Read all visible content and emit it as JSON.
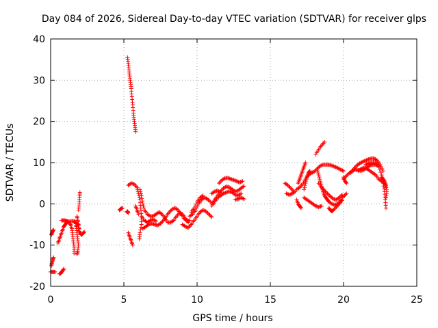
{
  "chart_data": {
    "type": "scatter",
    "title": "Day 084 of 2026, Sidereal Day-to-day VTEC variation (SDTVAR) for receiver glps",
    "xlabel": "GPS time / hours",
    "ylabel": "SDTVAR / TECUs",
    "xlim": [
      0,
      25
    ],
    "ylim": [
      -20,
      40
    ],
    "xticks": [
      0,
      5,
      10,
      15,
      20,
      25
    ],
    "yticks": [
      -20,
      -10,
      0,
      10,
      20,
      30,
      40
    ],
    "grid": true,
    "marker": "+",
    "color": "#ff0000",
    "segments": [
      [
        [
          0.05,
          -7.5
        ],
        [
          0.1,
          -7
        ],
        [
          0.15,
          -6.5
        ],
        [
          0.2,
          -6.3
        ]
      ],
      [
        [
          0.0,
          -16.5
        ],
        [
          0.15,
          -16.5
        ],
        [
          0.3,
          -16.5
        ]
      ],
      [
        [
          0.05,
          -15
        ],
        [
          0.1,
          -14.2
        ],
        [
          0.15,
          -13.5
        ],
        [
          0.2,
          -13
        ]
      ],
      [
        [
          0.6,
          -17
        ],
        [
          0.7,
          -16.8
        ],
        [
          0.8,
          -16.3
        ],
        [
          0.9,
          -15.8
        ]
      ],
      [
        [
          0.5,
          -9.5
        ],
        [
          0.6,
          -8.5
        ],
        [
          0.7,
          -7.5
        ],
        [
          0.8,
          -6.5
        ],
        [
          0.9,
          -5.5
        ],
        [
          1.0,
          -5
        ],
        [
          1.1,
          -4.5
        ],
        [
          1.2,
          -4.3
        ],
        [
          1.4,
          -4.2
        ],
        [
          1.6,
          -4.2
        ],
        [
          1.7,
          -4.5
        ],
        [
          1.75,
          -5.5
        ],
        [
          1.8,
          -7
        ],
        [
          1.85,
          -8.5
        ],
        [
          1.9,
          -10
        ],
        [
          1.85,
          -11.5
        ],
        [
          1.8,
          -12.2
        ]
      ],
      [
        [
          0.75,
          -4
        ],
        [
          0.9,
          -4
        ],
        [
          1.05,
          -4.1
        ],
        [
          1.2,
          -4.3
        ],
        [
          1.35,
          -5
        ],
        [
          1.45,
          -6
        ],
        [
          1.5,
          -7.5
        ],
        [
          1.55,
          -9
        ],
        [
          1.6,
          -10.5
        ],
        [
          1.6,
          -12
        ]
      ],
      [
        [
          1.9,
          -1.5
        ],
        [
          1.95,
          0
        ],
        [
          1.98,
          1.5
        ],
        [
          2.0,
          2.8
        ]
      ],
      [
        [
          1.9,
          -6
        ],
        [
          2.0,
          -7
        ],
        [
          2.1,
          -7.5
        ],
        [
          2.2,
          -7.2
        ],
        [
          2.3,
          -6.8
        ]
      ],
      [
        [
          1.8,
          -3
        ],
        [
          1.85,
          -4
        ],
        [
          1.9,
          -5
        ],
        [
          1.95,
          -6
        ]
      ],
      [
        [
          4.7,
          -1.5
        ],
        [
          4.8,
          -1.2
        ],
        [
          4.9,
          -1.0
        ]
      ],
      [
        [
          5.25,
          35.5
        ],
        [
          5.3,
          34
        ],
        [
          5.35,
          32.5
        ],
        [
          5.4,
          31
        ],
        [
          5.45,
          29.5
        ],
        [
          5.5,
          28
        ],
        [
          5.55,
          26
        ],
        [
          5.6,
          24
        ],
        [
          5.65,
          22
        ],
        [
          5.7,
          20.5
        ],
        [
          5.75,
          19
        ],
        [
          5.8,
          17.5
        ]
      ],
      [
        [
          5.2,
          -2
        ],
        [
          5.25,
          -1.8
        ],
        [
          5.3,
          -2.2
        ]
      ],
      [
        [
          5.3,
          -7
        ],
        [
          5.4,
          -8
        ],
        [
          5.5,
          -9
        ],
        [
          5.6,
          -10
        ]
      ],
      [
        [
          5.3,
          4.5
        ],
        [
          5.5,
          5
        ],
        [
          5.7,
          4.8
        ],
        [
          5.9,
          4
        ],
        [
          6.0,
          2.5
        ],
        [
          6.1,
          1
        ],
        [
          6.15,
          -1
        ],
        [
          6.2,
          -3
        ],
        [
          6.2,
          -5
        ],
        [
          6.1,
          -7
        ],
        [
          6.05,
          -8.5
        ]
      ],
      [
        [
          5.8,
          -0.5
        ],
        [
          5.9,
          -1.5
        ],
        [
          6.0,
          -2.5
        ]
      ],
      [
        [
          6.1,
          3.5
        ],
        [
          6.2,
          2
        ],
        [
          6.3,
          0
        ],
        [
          6.4,
          -1.5
        ],
        [
          6.6,
          -2.5
        ],
        [
          6.8,
          -3
        ],
        [
          7.0,
          -3
        ],
        [
          7.2,
          -2.5
        ],
        [
          7.4,
          -2
        ],
        [
          7.6,
          -2.5
        ],
        [
          7.8,
          -3.5
        ],
        [
          8.0,
          -4.5
        ],
        [
          8.2,
          -4.5
        ],
        [
          8.4,
          -4
        ],
        [
          8.6,
          -3
        ],
        [
          8.8,
          -2.2
        ],
        [
          9.0,
          -2.5
        ],
        [
          9.2,
          -3.5
        ],
        [
          9.4,
          -4.5
        ]
      ],
      [
        [
          6.3,
          -6
        ],
        [
          6.5,
          -5.5
        ],
        [
          6.7,
          -5
        ],
        [
          6.9,
          -4.8
        ],
        [
          7.1,
          -5
        ],
        [
          7.3,
          -5.2
        ],
        [
          7.5,
          -4.8
        ],
        [
          7.7,
          -4
        ],
        [
          7.9,
          -3
        ],
        [
          8.1,
          -2
        ],
        [
          8.3,
          -1.3
        ],
        [
          8.5,
          -1
        ],
        [
          8.7,
          -1.5
        ],
        [
          8.9,
          -2.5
        ],
        [
          9.1,
          -3.5
        ],
        [
          9.3,
          -4.2
        ],
        [
          9.5,
          -4
        ]
      ],
      [
        [
          6.2,
          -3
        ],
        [
          6.4,
          -4
        ],
        [
          6.6,
          -4.5
        ],
        [
          6.8,
          -4
        ],
        [
          7.0,
          -3.8
        ],
        [
          7.2,
          -4.2
        ]
      ],
      [
        [
          9.0,
          -5
        ],
        [
          9.2,
          -5.5
        ],
        [
          9.4,
          -5.8
        ],
        [
          9.6,
          -5
        ],
        [
          9.8,
          -4
        ],
        [
          10.0,
          -3
        ],
        [
          10.2,
          -2
        ],
        [
          10.4,
          -1.5
        ],
        [
          10.6,
          -1.8
        ],
        [
          10.8,
          -2.5
        ],
        [
          11.0,
          -3.2
        ]
      ],
      [
        [
          9.5,
          -3
        ],
        [
          9.7,
          -2.5
        ],
        [
          9.9,
          -1.5
        ],
        [
          10.1,
          0
        ],
        [
          10.3,
          1
        ],
        [
          10.5,
          1.5
        ],
        [
          10.7,
          1.2
        ],
        [
          10.9,
          0.5
        ]
      ],
      [
        [
          9.6,
          -2
        ],
        [
          9.8,
          -1
        ],
        [
          10.0,
          0.5
        ],
        [
          10.2,
          1.5
        ],
        [
          10.4,
          2
        ]
      ],
      [
        [
          11.0,
          0
        ],
        [
          11.2,
          1
        ],
        [
          11.4,
          2
        ],
        [
          11.6,
          3
        ],
        [
          11.8,
          3.8
        ],
        [
          12.0,
          4.2
        ],
        [
          12.2,
          4
        ],
        [
          12.4,
          3.5
        ],
        [
          12.6,
          3
        ],
        [
          12.8,
          3.2
        ],
        [
          13.0,
          3.8
        ],
        [
          13.2,
          4.3
        ]
      ],
      [
        [
          11.0,
          -0.5
        ],
        [
          11.2,
          0.5
        ],
        [
          11.4,
          1.5
        ],
        [
          11.6,
          2
        ],
        [
          11.8,
          2.5
        ],
        [
          12.0,
          2.8
        ],
        [
          12.2,
          3
        ],
        [
          12.4,
          2.8
        ],
        [
          12.6,
          2.2
        ],
        [
          12.8,
          2
        ],
        [
          13.0,
          2.5
        ]
      ],
      [
        [
          11.5,
          5
        ],
        [
          11.7,
          5.8
        ],
        [
          11.9,
          6.2
        ],
        [
          12.1,
          6.3
        ],
        [
          12.3,
          6
        ],
        [
          12.5,
          5.8
        ],
        [
          12.7,
          5.5
        ],
        [
          12.9,
          5.2
        ],
        [
          13.1,
          5.5
        ]
      ],
      [
        [
          11.0,
          2.5
        ],
        [
          11.2,
          3
        ],
        [
          11.4,
          3.2
        ],
        [
          11.6,
          2.8
        ]
      ],
      [
        [
          12.6,
          1
        ],
        [
          12.8,
          1.2
        ],
        [
          13.0,
          1.5
        ],
        [
          13.2,
          1.2
        ]
      ],
      [
        [
          16.0,
          5
        ],
        [
          16.2,
          4.5
        ],
        [
          16.4,
          3.8
        ],
        [
          16.6,
          3
        ]
      ],
      [
        [
          16.1,
          2.5
        ],
        [
          16.3,
          2.2
        ],
        [
          16.5,
          2.5
        ],
        [
          16.7,
          3
        ]
      ],
      [
        [
          16.8,
          1
        ],
        [
          16.9,
          0
        ],
        [
          17.0,
          -0.5
        ],
        [
          17.1,
          -1
        ]
      ],
      [
        [
          16.8,
          3.5
        ],
        [
          17.0,
          4
        ],
        [
          17.2,
          4.8
        ],
        [
          17.4,
          6
        ],
        [
          17.6,
          7
        ],
        [
          17.8,
          7.5
        ],
        [
          18.0,
          7.8
        ],
        [
          18.2,
          8.5
        ],
        [
          18.4,
          9.2
        ],
        [
          18.6,
          9.5
        ],
        [
          18.8,
          9.5
        ],
        [
          19.0,
          9.5
        ],
        [
          19.2,
          9.3
        ],
        [
          19.4,
          9
        ],
        [
          19.6,
          8.7
        ],
        [
          19.8,
          8.3
        ],
        [
          20.0,
          8
        ]
      ],
      [
        [
          16.9,
          5
        ],
        [
          17.0,
          6
        ],
        [
          17.1,
          7
        ],
        [
          17.2,
          8
        ],
        [
          17.3,
          9
        ],
        [
          17.4,
          10
        ]
      ],
      [
        [
          17.3,
          1.5
        ],
        [
          17.5,
          1
        ],
        [
          17.7,
          0.5
        ],
        [
          17.9,
          0
        ],
        [
          18.1,
          -0.5
        ],
        [
          18.3,
          -0.8
        ],
        [
          18.5,
          -0.5
        ]
      ],
      [
        [
          17.3,
          3.5
        ],
        [
          17.4,
          5
        ],
        [
          17.5,
          6.5
        ],
        [
          17.6,
          7.5
        ],
        [
          17.7,
          8
        ]
      ],
      [
        [
          18.1,
          12
        ],
        [
          18.3,
          13.2
        ],
        [
          18.5,
          14.2
        ],
        [
          18.7,
          15
        ]
      ],
      [
        [
          18.2,
          8.5
        ],
        [
          18.3,
          7
        ],
        [
          18.4,
          5.5
        ],
        [
          18.5,
          4.2
        ],
        [
          18.6,
          3
        ],
        [
          18.7,
          2
        ],
        [
          18.8,
          1.5
        ],
        [
          18.9,
          1
        ],
        [
          19.0,
          0.5
        ],
        [
          19.2,
          0
        ],
        [
          19.4,
          -0.3
        ],
        [
          19.6,
          0
        ],
        [
          19.8,
          0.8
        ],
        [
          20.0,
          1.8
        ],
        [
          20.2,
          2.5
        ]
      ],
      [
        [
          18.3,
          5
        ],
        [
          18.5,
          4
        ],
        [
          18.7,
          3.2
        ],
        [
          18.9,
          2.5
        ],
        [
          19.1,
          1.8
        ],
        [
          19.3,
          1.2
        ],
        [
          19.5,
          1
        ],
        [
          19.7,
          1.5
        ],
        [
          19.9,
          2.2
        ]
      ],
      [
        [
          19.0,
          -1
        ],
        [
          19.1,
          -1.5
        ],
        [
          19.2,
          -1.8
        ],
        [
          19.3,
          -1.5
        ],
        [
          19.5,
          -0.8
        ],
        [
          19.7,
          0
        ],
        [
          19.9,
          0.8
        ]
      ],
      [
        [
          20.0,
          6
        ],
        [
          20.2,
          6.8
        ],
        [
          20.4,
          7.5
        ],
        [
          20.6,
          8
        ],
        [
          20.8,
          8.3
        ],
        [
          21.0,
          8.2
        ],
        [
          21.2,
          8
        ],
        [
          21.4,
          8.3
        ],
        [
          21.6,
          8.8
        ],
        [
          21.8,
          9.3
        ],
        [
          22.0,
          9.5
        ],
        [
          22.2,
          9.5
        ],
        [
          22.4,
          9
        ],
        [
          22.6,
          7
        ],
        [
          22.7,
          5
        ],
        [
          22.8,
          3
        ],
        [
          22.85,
          1
        ],
        [
          22.9,
          -1
        ]
      ],
      [
        [
          20.5,
          7.5
        ],
        [
          20.7,
          8.5
        ],
        [
          20.9,
          9.3
        ],
        [
          21.1,
          9.8
        ],
        [
          21.3,
          10.2
        ],
        [
          21.5,
          10.5
        ],
        [
          21.7,
          10.8
        ],
        [
          21.9,
          11
        ],
        [
          22.1,
          11
        ],
        [
          22.3,
          10.5
        ],
        [
          22.5,
          9.5
        ],
        [
          22.7,
          8
        ]
      ],
      [
        [
          21.0,
          8
        ],
        [
          21.2,
          8.5
        ],
        [
          21.4,
          8.8
        ],
        [
          21.6,
          8.5
        ],
        [
          21.8,
          8
        ],
        [
          22.0,
          7.5
        ],
        [
          22.2,
          7
        ],
        [
          22.4,
          6
        ],
        [
          22.6,
          5.5
        ],
        [
          22.8,
          5
        ],
        [
          22.9,
          4
        ]
      ],
      [
        [
          21.5,
          9.5
        ],
        [
          21.7,
          9.8
        ],
        [
          21.9,
          10
        ],
        [
          22.1,
          10
        ],
        [
          22.3,
          9.8
        ],
        [
          22.5,
          9
        ]
      ],
      [
        [
          22.6,
          6.5
        ],
        [
          22.7,
          6
        ],
        [
          22.8,
          5.5
        ],
        [
          22.9,
          4.5
        ],
        [
          22.95,
          3
        ],
        [
          22.9,
          1.5
        ]
      ],
      [
        [
          20.0,
          6.5
        ],
        [
          20.1,
          5.5
        ],
        [
          20.2,
          5
        ]
      ]
    ]
  }
}
